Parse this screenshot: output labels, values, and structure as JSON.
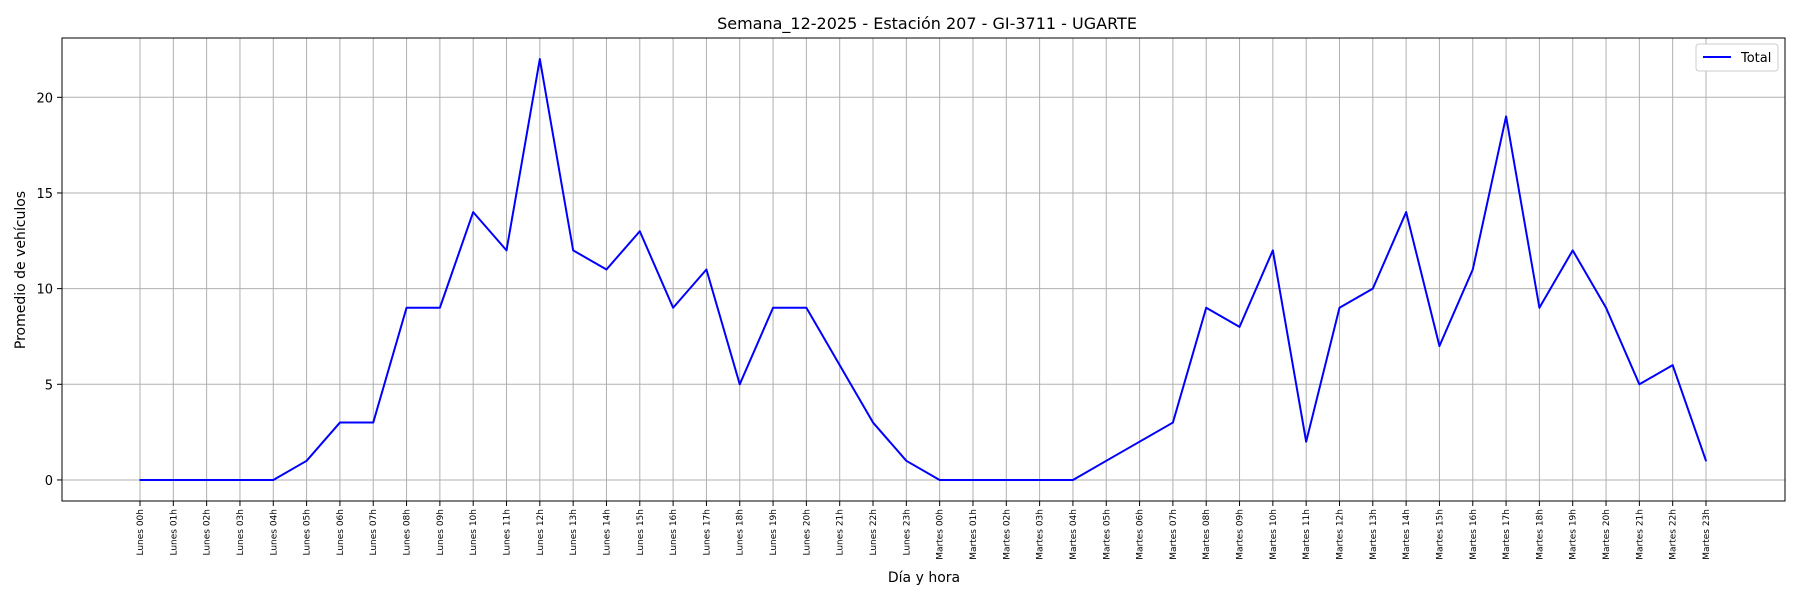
{
  "chart_data": {
    "type": "line",
    "title": "Semana_12-2025 - Estación 207 - GI-3711  - UGARTE",
    "xlabel": "Día y hora",
    "ylabel": "Promedio de vehículos",
    "ylim": [
      -1.1,
      23.1
    ],
    "yticks": [
      0,
      5,
      10,
      15,
      20
    ],
    "grid": true,
    "legend_position": "top-right",
    "categories": [
      "Lunes 00h",
      "Lunes 01h",
      "Lunes 02h",
      "Lunes 03h",
      "Lunes 04h",
      "Lunes 05h",
      "Lunes 06h",
      "Lunes 07h",
      "Lunes 08h",
      "Lunes 09h",
      "Lunes 10h",
      "Lunes 11h",
      "Lunes 12h",
      "Lunes 13h",
      "Lunes 14h",
      "Lunes 15h",
      "Lunes 16h",
      "Lunes 17h",
      "Lunes 18h",
      "Lunes 19h",
      "Lunes 20h",
      "Lunes 21h",
      "Lunes 22h",
      "Lunes 23h",
      "Martes 00h",
      "Martes 01h",
      "Martes 02h",
      "Martes 03h",
      "Martes 04h",
      "Martes 05h",
      "Martes 06h",
      "Martes 07h",
      "Martes 08h",
      "Martes 09h",
      "Martes 10h",
      "Martes 11h",
      "Martes 12h",
      "Martes 13h",
      "Martes 14h",
      "Martes 15h",
      "Martes 16h",
      "Martes 17h",
      "Martes 18h",
      "Martes 19h",
      "Martes 20h",
      "Martes 21h",
      "Martes 22h",
      "Martes 23h"
    ],
    "series": [
      {
        "name": "Total",
        "color": "#0000ff",
        "values": [
          0,
          0,
          0,
          0,
          0,
          1,
          3,
          3,
          9,
          9,
          14,
          12,
          22,
          12,
          11,
          13,
          9,
          11,
          5,
          9,
          9,
          6,
          3,
          1,
          0,
          0,
          0,
          0,
          0,
          1,
          2,
          3,
          9,
          8,
          12,
          2,
          9,
          10,
          14,
          7,
          11,
          19,
          9,
          12,
          9,
          5,
          6,
          1
        ]
      }
    ]
  }
}
